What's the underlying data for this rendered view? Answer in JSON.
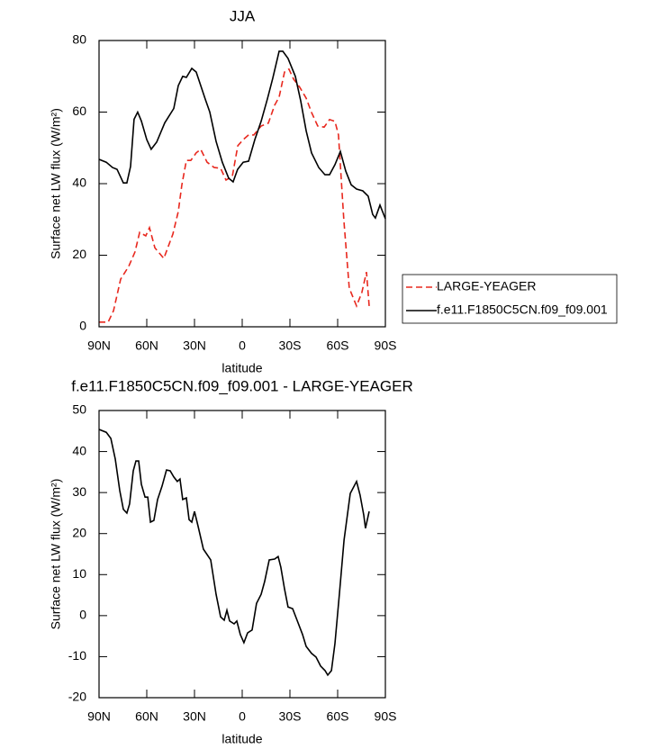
{
  "chart_data": [
    {
      "type": "line",
      "title": "JJA",
      "xlabel": "latitude",
      "ylabel": "Surface net LW flux (W/m²)",
      "xlim": [
        90,
        -90
      ],
      "xticks": [
        {
          "value": 90,
          "label": "90N"
        },
        {
          "value": 60,
          "label": "60N"
        },
        {
          "value": 30,
          "label": "30N"
        },
        0,
        {
          "value": -30,
          "label": "30S"
        },
        {
          "value": -60,
          "label": "60S"
        },
        {
          "value": -90,
          "label": "90S"
        }
      ],
      "ylim": [
        0,
        80
      ],
      "yticks": [
        0,
        20,
        40,
        60,
        80
      ],
      "legend": "right",
      "series": [
        {
          "name": "LARGE-YEAGER",
          "color": "#e8281e",
          "dashed": true,
          "x": [
            90,
            84.3,
            80.9,
            76.4,
            71.3,
            67.4,
            64.5,
            60.6,
            58.3,
            54.9,
            49.3,
            43.6,
            40.2,
            37.9,
            35.1,
            32.3,
            28.9,
            26.1,
            22.1,
            17.6,
            13.6,
            10.2,
            6.2,
            2.8,
            -0.6,
            -4,
            -7.3,
            -11.9,
            -16.4,
            -20.4,
            -23.2,
            -26.6,
            -29.4,
            -32.3,
            -36.2,
            -40.2,
            -43.6,
            -47.5,
            -51.5,
            -54.9,
            -58.3,
            -60.5,
            -63.9,
            -67.3,
            -71.9,
            -75.2,
            -78.1,
            -79.8
          ],
          "values": [
            1.3,
            1.3,
            4.5,
            13.3,
            16.9,
            20.9,
            26.4,
            25.4,
            27.7,
            22.1,
            19.1,
            25.9,
            32.2,
            39.7,
            46.5,
            46.5,
            48.6,
            49.6,
            46,
            44.5,
            44.3,
            41,
            42,
            50.6,
            52.3,
            53.6,
            53.6,
            56.1,
            56.9,
            61.9,
            64.2,
            71.2,
            72,
            69.2,
            66.9,
            63.9,
            59.9,
            56.1,
            55.8,
            57.9,
            57.4,
            53.6,
            29.7,
            10.8,
            5.8,
            9.6,
            15.3,
            5.8
          ]
        },
        {
          "name": "f.e11.F1850C5CN.f09_f09.001",
          "color": "#000000",
          "dashed": false,
          "x": [
            90,
            85.5,
            81.5,
            78.7,
            74.7,
            72.5,
            70.2,
            68,
            65.7,
            63.4,
            60,
            57.2,
            53.8,
            48.7,
            43,
            40.2,
            37.4,
            35.1,
            31.7,
            28.9,
            23.2,
            20.4,
            16.4,
            12.5,
            8.5,
            5.7,
            2.9,
            -0.6,
            -4,
            -7.9,
            -11.9,
            -15.8,
            -19.2,
            -23.2,
            -25.5,
            -28.8,
            -33.4,
            -36.8,
            -40.2,
            -43.6,
            -48.1,
            -52,
            -54.9,
            -58.3,
            -61.7,
            -65.1,
            -68.5,
            -71.9,
            -75.8,
            -79.2,
            -82,
            -83.7,
            -86.6,
            -90
          ],
          "values": [
            46.8,
            46,
            44.5,
            44,
            40.2,
            40.2,
            44.8,
            58,
            60,
            57.5,
            52.3,
            49.6,
            51.6,
            57,
            61,
            67.4,
            70,
            69.7,
            72.2,
            71.2,
            63.6,
            60,
            51.8,
            46,
            41.5,
            40.5,
            44,
            46,
            46.3,
            52.3,
            57.4,
            63.6,
            69.4,
            77,
            77,
            75,
            70,
            63.1,
            54.8,
            48.6,
            44.5,
            42.5,
            42.5,
            45.3,
            49,
            43.5,
            39.7,
            38.5,
            38,
            36.5,
            31.4,
            30.4,
            34,
            30.2
          ]
        }
      ]
    },
    {
      "type": "line",
      "title": "f.e11.F1850C5CN.f09_f09.001 - LARGE-YEAGER",
      "xlabel": "latitude",
      "ylabel": "Surface net LW flux (W/m²)",
      "xlim": [
        90,
        -90
      ],
      "xticks": [
        {
          "value": 90,
          "label": "90N"
        },
        {
          "value": 60,
          "label": "60N"
        },
        {
          "value": 30,
          "label": "30N"
        },
        0,
        {
          "value": -30,
          "label": "30S"
        },
        {
          "value": -60,
          "label": "60S"
        },
        {
          "value": -90,
          "label": "90S"
        }
      ],
      "ylim": [
        -20,
        50
      ],
      "yticks": [
        -20,
        -10,
        0,
        10,
        20,
        30,
        40,
        50
      ],
      "series": [
        {
          "color": "#000000",
          "dashed": false,
          "x": [
            90,
            85.5,
            82.6,
            79.8,
            77,
            74.7,
            72.5,
            70.8,
            68.5,
            66.8,
            65.1,
            63.4,
            61.1,
            59.4,
            57.7,
            55.5,
            53.2,
            50.4,
            47.6,
            45.3,
            43,
            40.8,
            39.1,
            37.4,
            35.1,
            33.4,
            31.7,
            30,
            27.7,
            24.4,
            19.8,
            16.4,
            13.6,
            11.3,
            9.6,
            7.9,
            5.1,
            3.4,
            1.2,
            -1.1,
            -3.4,
            -6.2,
            -9,
            -11.9,
            -14.1,
            -17,
            -20.4,
            -22.6,
            -24.3,
            -26.6,
            -28.8,
            -31.7,
            -34.5,
            -37.9,
            -40.2,
            -43.6,
            -46.4,
            -49.3,
            -52.1,
            -53.8,
            -56.1,
            -58.3,
            -61.1,
            -64,
            -67.9,
            -71.9,
            -74.1,
            -76.4,
            -77.5,
            -79.8
          ],
          "values": [
            45.4,
            44.7,
            43.2,
            38.2,
            30.5,
            25.9,
            25,
            27.2,
            35.3,
            37.7,
            37.7,
            32,
            28.9,
            28.9,
            22.8,
            23.2,
            28.3,
            31.6,
            35.5,
            35.3,
            33.8,
            32.7,
            33.3,
            28.3,
            28.7,
            23.4,
            22.8,
            25.4,
            21.7,
            16.2,
            13.6,
            5.2,
            -0.3,
            -1.1,
            1.3,
            -1.3,
            -2,
            -1.3,
            -4.6,
            -6.6,
            -4.2,
            -3.5,
            3,
            5.2,
            8.3,
            13.6,
            13.8,
            14.4,
            11.8,
            6.5,
            2.1,
            1.7,
            -1.1,
            -4.6,
            -7.5,
            -9.2,
            -10.1,
            -12.3,
            -13.4,
            -14.5,
            -13.4,
            -6.8,
            5.2,
            18.4,
            29.8,
            32.7,
            29.4,
            24.5,
            21.3,
            25.4
          ]
        }
      ]
    }
  ]
}
